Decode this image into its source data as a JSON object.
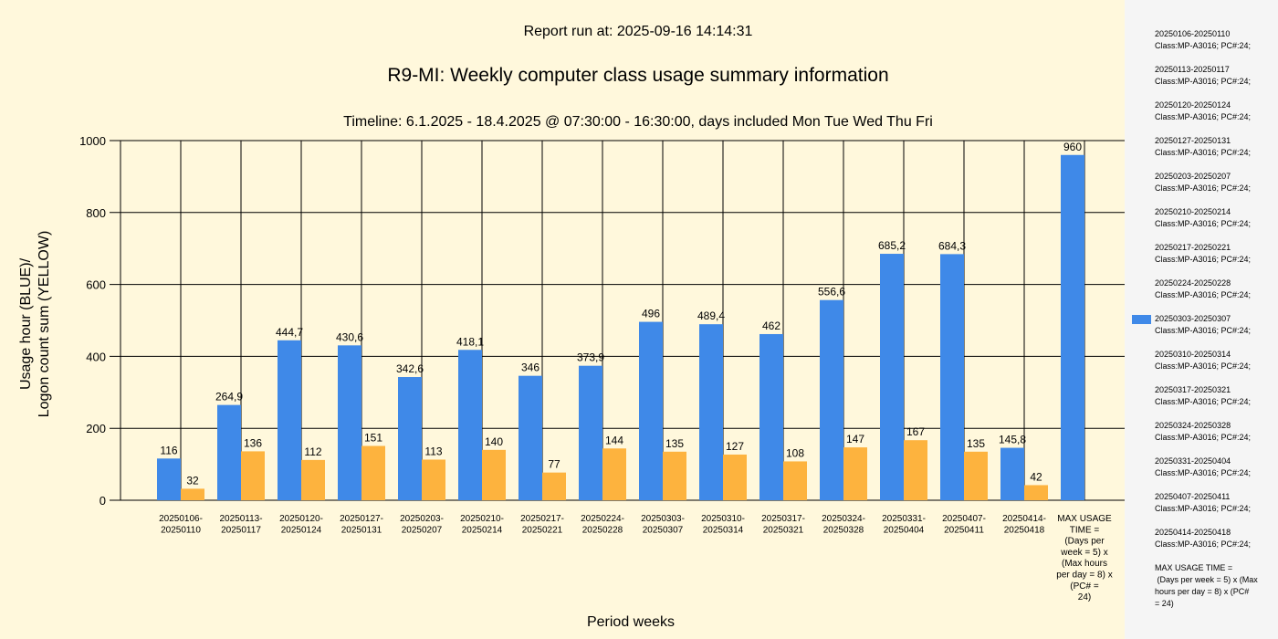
{
  "header": {
    "report_run": "Report run at: 2025-09-16 14:14:31",
    "title": "R9-MI: Weekly computer class usage summary information",
    "timeline": "Timeline:  6.1.2025  - 18.4.2025  @  07:30:00 -  16:30:00, days included Mon Tue Wed Thu Fri"
  },
  "chart_data": {
    "type": "bar",
    "title": "R9-MI: Weekly computer class usage summary information",
    "xlabel": "Period weeks",
    "ylabel_line1": "Usage hour (BLUE)/",
    "ylabel_line2": "Logon count sum (YELLOW)",
    "ylim": [
      0,
      1000
    ],
    "yticks": [
      "0",
      "200",
      "400",
      "600",
      "800",
      "1000"
    ],
    "ytick_values": [
      0,
      200,
      400,
      600,
      800,
      1000
    ],
    "categories": [
      "20250106-\n20250110",
      "20250113-\n20250117",
      "20250120-\n20250124",
      "20250127-\n20250131",
      "20250203-\n20250207",
      "20250210-\n20250214",
      "20250217-\n20250221",
      "20250224-\n20250228",
      "20250303-\n20250307",
      "20250310-\n20250314",
      "20250317-\n20250321",
      "20250324-\n20250328",
      "20250331-\n20250404",
      "20250407-\n20250411",
      "20250414-\n20250418",
      "MAX USAGE\nTIME =\n(Days per\nweek = 5) x\n(Max hours\nper day = 8) x\n(PC# =\n24)"
    ],
    "series": [
      {
        "name": "Usage hour",
        "color": "#3F89E8",
        "values": [
          116,
          264.9,
          444.7,
          430.6,
          342.6,
          418.1,
          346,
          373.9,
          496,
          489.4,
          462,
          556.6,
          685.2,
          684.3,
          145.8,
          960
        ],
        "labels": [
          "116",
          "264,9",
          "444,7",
          "430,6",
          "342,6",
          "418,1",
          "346",
          "373,9",
          "496",
          "489,4",
          "462",
          "556,6",
          "685,2",
          "684,3",
          "145,8",
          "960"
        ]
      },
      {
        "name": "Logon count sum",
        "color": "#FDB33E",
        "values": [
          32,
          136,
          112,
          151,
          113,
          140,
          77,
          144,
          135,
          127,
          108,
          147,
          167,
          135,
          42,
          null
        ],
        "labels": [
          "32",
          "136",
          "112",
          "151",
          "113",
          "140",
          "77",
          "144",
          "135",
          "127",
          "108",
          "147",
          "167",
          "135",
          "42",
          null
        ]
      }
    ],
    "legend_position": "right"
  },
  "legend": {
    "entries": [
      "20250106-20250110\nClass:MP-A3016; PC#:24;",
      "20250113-20250117\nClass:MP-A3016; PC#:24;",
      "20250120-20250124\nClass:MP-A3016; PC#:24;",
      "20250127-20250131\nClass:MP-A3016; PC#:24;",
      "20250203-20250207\nClass:MP-A3016; PC#:24;",
      "20250210-20250214\nClass:MP-A3016; PC#:24;",
      "20250217-20250221\nClass:MP-A3016; PC#:24;",
      "20250224-20250228\nClass:MP-A3016; PC#:24;",
      "20250303-20250307\nClass:MP-A3016; PC#:24;",
      "20250310-20250314\nClass:MP-A3016; PC#:24;",
      "20250317-20250321\nClass:MP-A3016; PC#:24;",
      "20250324-20250328\nClass:MP-A3016; PC#:24;",
      "20250331-20250404\nClass:MP-A3016; PC#:24;",
      "20250407-20250411\nClass:MP-A3016; PC#:24;",
      "20250414-20250418\nClass:MP-A3016; PC#:24;",
      "MAX USAGE TIME =\n (Days per week = 5) x (Max\nhours per day = 8) x (PC#\n= 24)"
    ],
    "swatch_entry_index": 8,
    "swatch_color": "#3F89E8"
  }
}
